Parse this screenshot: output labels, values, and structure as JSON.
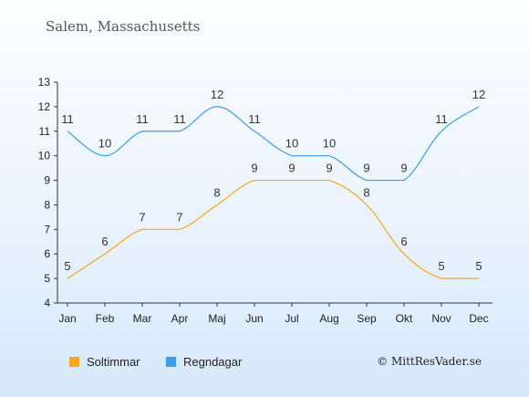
{
  "header": {
    "city": "Salem, Massachusetts"
  },
  "footer": {
    "copyright": "© MittResVader.se"
  },
  "chart_data": {
    "type": "line",
    "categories": [
      "Jan",
      "Feb",
      "Mar",
      "Apr",
      "Maj",
      "Jun",
      "Jul",
      "Aug",
      "Sep",
      "Okt",
      "Nov",
      "Dec"
    ],
    "series": [
      {
        "name": "Soltimmar",
        "color": "#f5a623",
        "values": [
          5,
          6,
          7,
          7,
          8,
          9,
          9,
          9,
          8,
          6,
          5,
          5
        ]
      },
      {
        "name": "Regndagar",
        "color": "#3d9be9",
        "values": [
          11,
          10,
          11,
          11,
          12,
          11,
          10,
          10,
          9,
          9,
          11,
          12
        ]
      }
    ],
    "yticks": [
      4,
      5,
      6,
      7,
      8,
      9,
      10,
      11,
      12,
      13
    ],
    "ylim": [
      4,
      13
    ],
    "grid": false,
    "legend": "bottom-left"
  }
}
